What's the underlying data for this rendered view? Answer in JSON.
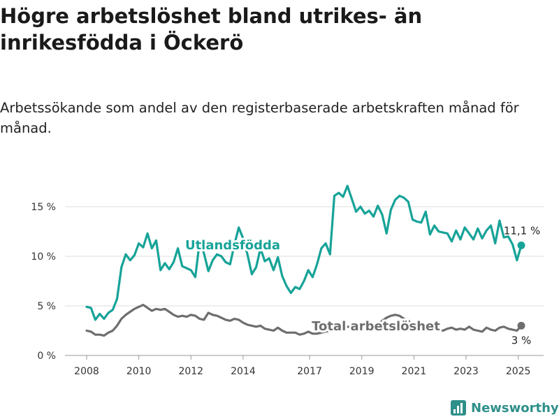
{
  "title": "Högre arbetslöshet bland utrikes- än inrikesfödda i Öckerö",
  "subtitle": "Arbetssökande som andel av den registerbaserade arbetskraften månad för månad.",
  "logo": {
    "text": "Newsworthy",
    "icon": "bar-chart-logo-icon",
    "color": "#2f8f8a"
  },
  "chart_data": {
    "type": "line",
    "title": "Högre arbetslöshet bland utrikes- än inrikesfödda i Öckerö",
    "subtitle": "Arbetssökande som andel av den registerbaserade arbetskraften månad för månad.",
    "xlabel": "",
    "ylabel": "",
    "x_ticks": [
      "2008",
      "2010",
      "2012",
      "2014",
      "2017",
      "2019",
      "2021",
      "2023",
      "2025"
    ],
    "y_ticks": [
      "0 %",
      "5 %",
      "10 %",
      "15 %"
    ],
    "ylim": [
      0,
      18
    ],
    "grid": true,
    "legend": "inline",
    "series": [
      {
        "name": "Utlandsfödda",
        "color": "#17a398",
        "end_label": "11,1 %",
        "points": [
          [
            "2008-01",
            4.9
          ],
          [
            "2008-03",
            4.8
          ],
          [
            "2008-05",
            3.6
          ],
          [
            "2008-07",
            4.2
          ],
          [
            "2008-09",
            3.7
          ],
          [
            "2008-11",
            4.3
          ],
          [
            "2009-01",
            4.6
          ],
          [
            "2009-03",
            5.7
          ],
          [
            "2009-05",
            8.9
          ],
          [
            "2009-07",
            10.2
          ],
          [
            "2009-09",
            9.6
          ],
          [
            "2009-11",
            10.1
          ],
          [
            "2010-01",
            11.3
          ],
          [
            "2010-03",
            10.9
          ],
          [
            "2010-05",
            12.3
          ],
          [
            "2010-07",
            10.8
          ],
          [
            "2010-09",
            11.6
          ],
          [
            "2010-11",
            8.6
          ],
          [
            "2011-01",
            9.3
          ],
          [
            "2011-03",
            8.7
          ],
          [
            "2011-05",
            9.4
          ],
          [
            "2011-07",
            10.8
          ],
          [
            "2011-09",
            9.0
          ],
          [
            "2011-11",
            8.8
          ],
          [
            "2012-01",
            8.6
          ],
          [
            "2012-03",
            7.9
          ],
          [
            "2012-05",
            11.5
          ],
          [
            "2012-07",
            10.3
          ],
          [
            "2012-09",
            8.5
          ],
          [
            "2012-11",
            9.6
          ],
          [
            "2013-01",
            10.2
          ],
          [
            "2013-03",
            10.0
          ],
          [
            "2013-05",
            9.4
          ],
          [
            "2013-07",
            9.2
          ],
          [
            "2013-09",
            11.2
          ],
          [
            "2013-11",
            12.9
          ],
          [
            "2014-01",
            11.8
          ],
          [
            "2014-03",
            10.2
          ],
          [
            "2014-05",
            8.2
          ],
          [
            "2014-07",
            8.9
          ],
          [
            "2014-09",
            10.8
          ],
          [
            "2014-11",
            9.5
          ],
          [
            "2015-01",
            9.8
          ],
          [
            "2015-03",
            8.6
          ],
          [
            "2015-05",
            9.9
          ],
          [
            "2015-07",
            8.0
          ],
          [
            "2015-09",
            7.0
          ],
          [
            "2015-11",
            6.3
          ],
          [
            "2016-01",
            6.9
          ],
          [
            "2016-03",
            6.7
          ],
          [
            "2016-05",
            7.5
          ],
          [
            "2016-07",
            8.6
          ],
          [
            "2016-09",
            7.9
          ],
          [
            "2016-11",
            9.2
          ],
          [
            "2017-01",
            10.8
          ],
          [
            "2017-03",
            11.3
          ],
          [
            "2017-05",
            10.2
          ],
          [
            "2017-07",
            16.1
          ],
          [
            "2017-09",
            16.4
          ],
          [
            "2017-11",
            16.0
          ],
          [
            "2018-01",
            17.1
          ],
          [
            "2018-03",
            15.8
          ],
          [
            "2018-05",
            14.5
          ],
          [
            "2018-07",
            15.0
          ],
          [
            "2018-09",
            14.3
          ],
          [
            "2018-11",
            14.6
          ],
          [
            "2019-01",
            14.0
          ],
          [
            "2019-03",
            15.1
          ],
          [
            "2019-05",
            14.2
          ],
          [
            "2019-07",
            12.3
          ],
          [
            "2019-09",
            14.7
          ],
          [
            "2019-11",
            15.7
          ],
          [
            "2020-01",
            16.1
          ],
          [
            "2020-03",
            15.9
          ],
          [
            "2020-05",
            15.5
          ],
          [
            "2020-07",
            13.7
          ],
          [
            "2020-09",
            13.5
          ],
          [
            "2020-11",
            13.4
          ],
          [
            "2021-01",
            14.5
          ],
          [
            "2021-03",
            12.2
          ],
          [
            "2021-05",
            13.1
          ],
          [
            "2021-07",
            12.5
          ],
          [
            "2021-09",
            12.4
          ],
          [
            "2021-11",
            12.3
          ],
          [
            "2022-01",
            11.5
          ],
          [
            "2022-03",
            12.6
          ],
          [
            "2022-05",
            11.7
          ],
          [
            "2022-07",
            12.9
          ],
          [
            "2022-09",
            12.3
          ],
          [
            "2022-11",
            11.7
          ],
          [
            "2023-01",
            12.8
          ],
          [
            "2023-03",
            11.8
          ],
          [
            "2023-05",
            12.6
          ],
          [
            "2023-07",
            13.1
          ],
          [
            "2023-09",
            11.3
          ],
          [
            "2023-11",
            13.6
          ],
          [
            "2024-01",
            11.9
          ],
          [
            "2024-03",
            12.0
          ],
          [
            "2024-05",
            11.2
          ],
          [
            "2024-07",
            9.6
          ],
          [
            "2024-09",
            11.1
          ]
        ]
      },
      {
        "name": "Total arbetslöshet",
        "color": "#6e6e6e",
        "end_label": "3 %",
        "points": [
          [
            "2008-01",
            2.5
          ],
          [
            "2008-03",
            2.4
          ],
          [
            "2008-05",
            2.1
          ],
          [
            "2008-07",
            2.1
          ],
          [
            "2008-09",
            2.0
          ],
          [
            "2008-11",
            2.3
          ],
          [
            "2009-01",
            2.5
          ],
          [
            "2009-03",
            3.0
          ],
          [
            "2009-05",
            3.7
          ],
          [
            "2009-07",
            4.1
          ],
          [
            "2009-09",
            4.4
          ],
          [
            "2009-11",
            4.7
          ],
          [
            "2010-01",
            4.9
          ],
          [
            "2010-03",
            5.1
          ],
          [
            "2010-05",
            4.8
          ],
          [
            "2010-07",
            4.5
          ],
          [
            "2010-09",
            4.7
          ],
          [
            "2010-11",
            4.6
          ],
          [
            "2011-01",
            4.7
          ],
          [
            "2011-03",
            4.4
          ],
          [
            "2011-05",
            4.1
          ],
          [
            "2011-07",
            3.9
          ],
          [
            "2011-09",
            4.0
          ],
          [
            "2011-11",
            3.9
          ],
          [
            "2012-01",
            4.1
          ],
          [
            "2012-03",
            4.0
          ],
          [
            "2012-05",
            3.7
          ],
          [
            "2012-07",
            3.6
          ],
          [
            "2012-09",
            4.3
          ],
          [
            "2012-11",
            4.1
          ],
          [
            "2013-01",
            4.0
          ],
          [
            "2013-03",
            3.8
          ],
          [
            "2013-05",
            3.6
          ],
          [
            "2013-07",
            3.5
          ],
          [
            "2013-09",
            3.7
          ],
          [
            "2013-11",
            3.6
          ],
          [
            "2014-01",
            3.3
          ],
          [
            "2014-03",
            3.1
          ],
          [
            "2014-05",
            3.0
          ],
          [
            "2014-07",
            2.9
          ],
          [
            "2014-09",
            3.0
          ],
          [
            "2014-11",
            2.7
          ],
          [
            "2015-01",
            2.6
          ],
          [
            "2015-03",
            2.5
          ],
          [
            "2015-05",
            2.8
          ],
          [
            "2015-07",
            2.5
          ],
          [
            "2015-09",
            2.3
          ],
          [
            "2015-11",
            2.3
          ],
          [
            "2016-01",
            2.3
          ],
          [
            "2016-03",
            2.1
          ],
          [
            "2016-05",
            2.2
          ],
          [
            "2016-07",
            2.4
          ],
          [
            "2016-09",
            2.2
          ],
          [
            "2016-11",
            2.2
          ],
          [
            "2017-01",
            2.3
          ],
          [
            "2017-03",
            2.4
          ],
          [
            "2017-05",
            2.5
          ],
          [
            "2017-07",
            2.6
          ],
          [
            "2017-09",
            2.8
          ],
          [
            "2017-11",
            2.7
          ],
          [
            "2018-01",
            2.9
          ],
          [
            "2018-03",
            2.8
          ],
          [
            "2018-05",
            2.9
          ],
          [
            "2018-07",
            2.8
          ],
          [
            "2018-09",
            3.0
          ],
          [
            "2018-11",
            2.9
          ],
          [
            "2019-01",
            3.1
          ],
          [
            "2019-03",
            3.0
          ],
          [
            "2019-05",
            3.5
          ],
          [
            "2019-07",
            3.8
          ],
          [
            "2019-09",
            4.0
          ],
          [
            "2019-11",
            4.1
          ],
          [
            "2020-01",
            4.0
          ],
          [
            "2020-03",
            3.7
          ],
          [
            "2020-05",
            3.5
          ],
          [
            "2020-07",
            3.1
          ],
          [
            "2020-09",
            2.9
          ],
          [
            "2020-11",
            3.0
          ],
          [
            "2021-01",
            3.0
          ],
          [
            "2021-03",
            2.8
          ],
          [
            "2021-05",
            2.9
          ],
          [
            "2021-07",
            2.6
          ],
          [
            "2021-09",
            2.5
          ],
          [
            "2021-11",
            2.7
          ],
          [
            "2022-01",
            2.8
          ],
          [
            "2022-03",
            2.6
          ],
          [
            "2022-05",
            2.7
          ],
          [
            "2022-07",
            2.6
          ],
          [
            "2022-09",
            2.9
          ],
          [
            "2022-11",
            2.6
          ],
          [
            "2023-01",
            2.5
          ],
          [
            "2023-03",
            2.4
          ],
          [
            "2023-05",
            2.8
          ],
          [
            "2023-07",
            2.6
          ],
          [
            "2023-09",
            2.5
          ],
          [
            "2023-11",
            2.8
          ],
          [
            "2024-01",
            2.9
          ],
          [
            "2024-03",
            2.7
          ],
          [
            "2024-05",
            2.6
          ],
          [
            "2024-07",
            2.5
          ],
          [
            "2024-09",
            3.0
          ]
        ]
      }
    ]
  }
}
